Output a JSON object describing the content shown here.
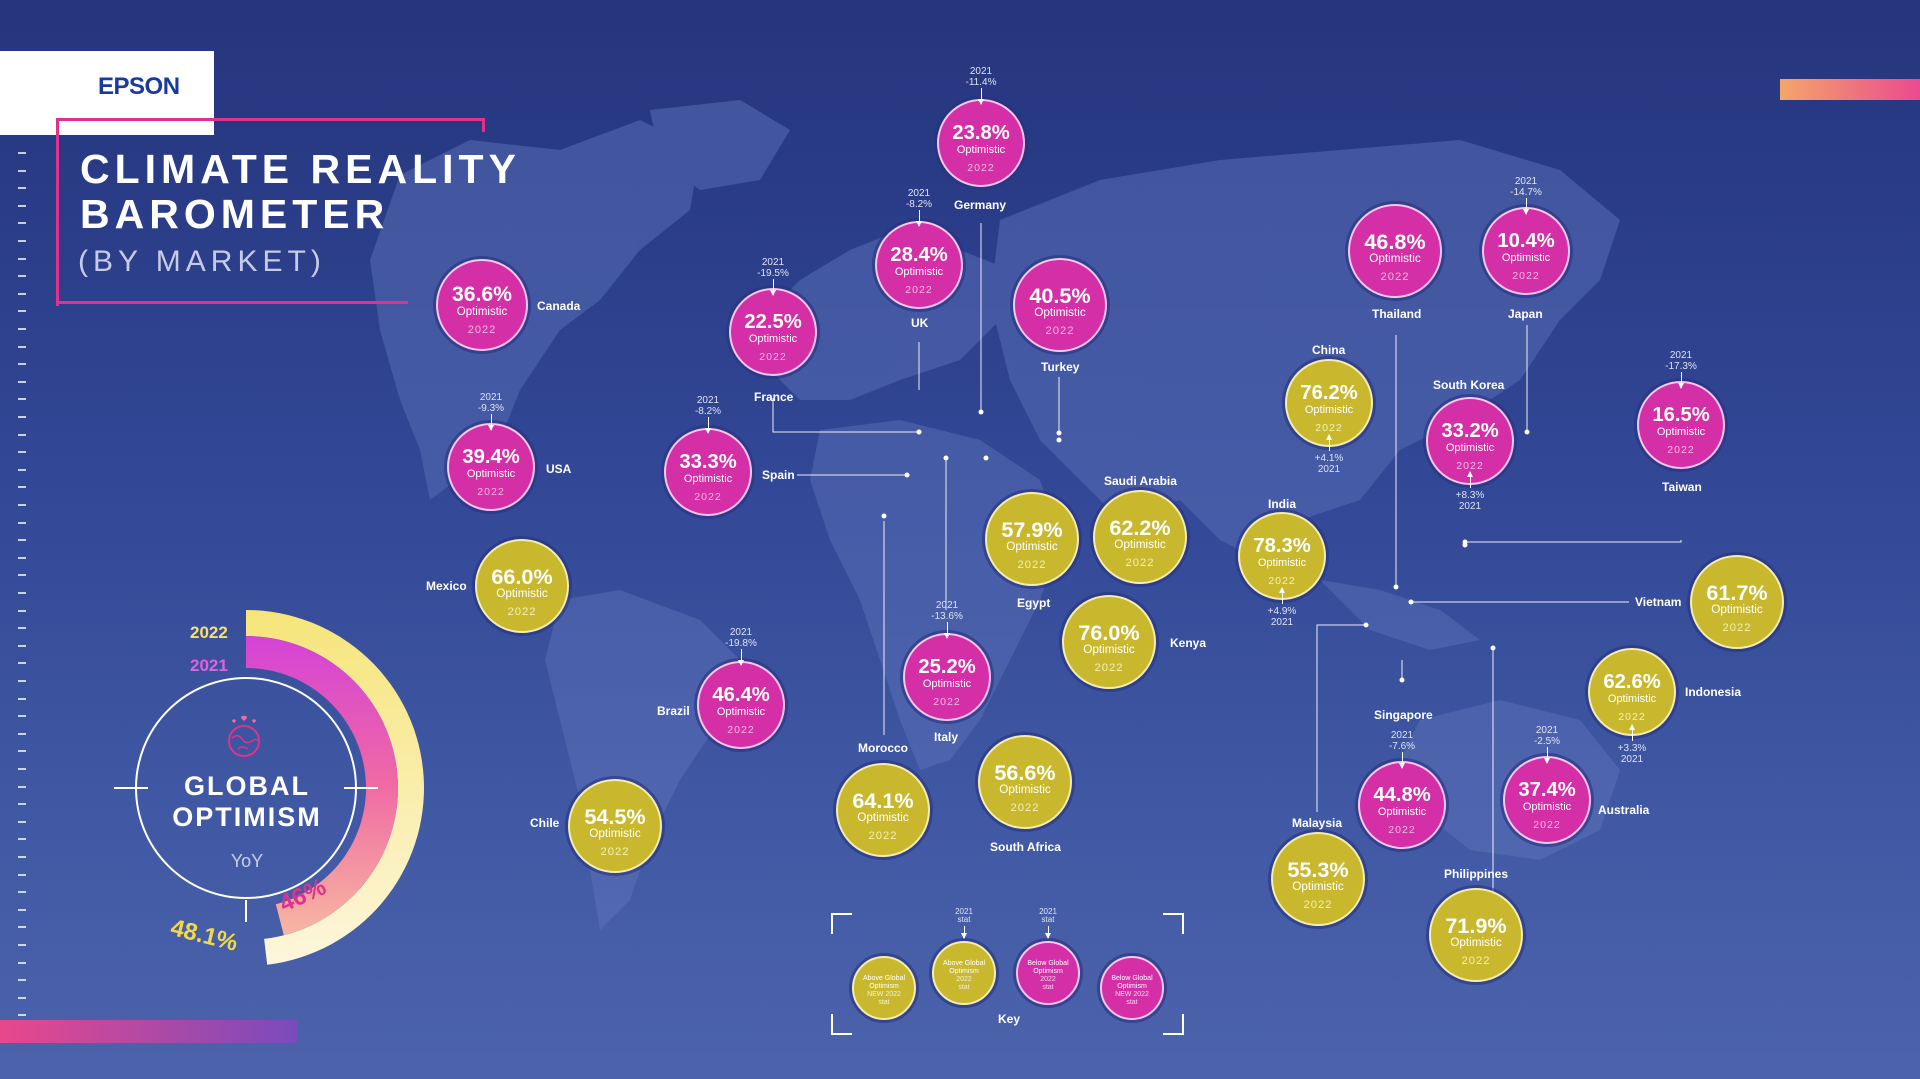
{
  "brand": "EPSON",
  "title": {
    "line1": "CLIMATE REALITY",
    "line2": "BAROMETER",
    "line3": "(BY MARKET)"
  },
  "colors": {
    "above": "#c9b82e",
    "below": "#d42fa6",
    "background": "#2e4494",
    "accent": "#e0318c"
  },
  "optimistic_label": "Optimistic",
  "global": {
    "title1": "GLOBAL",
    "title2": "OPTIMISM",
    "sub": "YoY",
    "legend_2022": "2022",
    "legend_2021": "2021",
    "value_2022": "48.1%",
    "value_2021": "46%",
    "value_2022_num": 48.1,
    "value_2021_num": 46,
    "icon": "earth-heart-icon"
  },
  "markets": [
    {
      "name": "Canada",
      "pct": "36.6%",
      "year": "2022",
      "color": "pink",
      "change_year": "",
      "change": ""
    },
    {
      "name": "USA",
      "pct": "39.4%",
      "year": "2022",
      "color": "pink",
      "change_year": "2021",
      "change": "-9.3%"
    },
    {
      "name": "Mexico",
      "pct": "66.0%",
      "year": "2022",
      "color": "yellow",
      "change_year": "",
      "change": ""
    },
    {
      "name": "Chile",
      "pct": "54.5%",
      "year": "2022",
      "color": "yellow",
      "change_year": "",
      "change": ""
    },
    {
      "name": "Brazil",
      "pct": "46.4%",
      "year": "2022",
      "color": "pink",
      "change_year": "2021",
      "change": "-19.8%"
    },
    {
      "name": "Spain",
      "pct": "33.3%",
      "year": "2022",
      "color": "pink",
      "change_year": "2021",
      "change": "-8.2%"
    },
    {
      "name": "France",
      "pct": "22.5%",
      "year": "2022",
      "color": "pink",
      "change_year": "2021",
      "change": "-19.5%"
    },
    {
      "name": "UK",
      "pct": "28.4%",
      "year": "2022",
      "color": "pink",
      "change_year": "2021",
      "change": "-8.2%"
    },
    {
      "name": "Germany",
      "pct": "23.8%",
      "year": "2022",
      "color": "pink",
      "change_year": "2021",
      "change": "-11.4%"
    },
    {
      "name": "Turkey",
      "pct": "40.5%",
      "year": "2022",
      "color": "pink",
      "change_year": "",
      "change": ""
    },
    {
      "name": "Italy",
      "pct": "25.2%",
      "year": "2022",
      "color": "pink",
      "change_year": "2021",
      "change": "-13.6%"
    },
    {
      "name": "Morocco",
      "pct": "64.1%",
      "year": "2022",
      "color": "yellow",
      "change_year": "",
      "change": ""
    },
    {
      "name": "Egypt",
      "pct": "57.9%",
      "year": "2022",
      "color": "yellow",
      "change_year": "",
      "change": ""
    },
    {
      "name": "Saudi Arabia",
      "pct": "62.2%",
      "year": "2022",
      "color": "yellow",
      "change_year": "",
      "change": ""
    },
    {
      "name": "Kenya",
      "pct": "76.0%",
      "year": "2022",
      "color": "yellow",
      "change_year": "",
      "change": ""
    },
    {
      "name": "South Africa",
      "pct": "56.6%",
      "year": "2022",
      "color": "yellow",
      "change_year": "",
      "change": ""
    },
    {
      "name": "China",
      "pct": "76.2%",
      "year": "2022",
      "color": "yellow",
      "change_year": "2021",
      "change": "+4.1%"
    },
    {
      "name": "India",
      "pct": "78.3%",
      "year": "2022",
      "color": "yellow",
      "change_year": "2021",
      "change": "+4.9%"
    },
    {
      "name": "Thailand",
      "pct": "46.8%",
      "year": "2022",
      "color": "pink",
      "change_year": "",
      "change": ""
    },
    {
      "name": "Japan",
      "pct": "10.4%",
      "year": "2022",
      "color": "pink",
      "change_year": "2021",
      "change": "-14.7%"
    },
    {
      "name": "South Korea",
      "pct": "33.2%",
      "year": "2022",
      "color": "pink",
      "change_year": "2021",
      "change": "+8.3%"
    },
    {
      "name": "Taiwan",
      "pct": "16.5%",
      "year": "2022",
      "color": "pink",
      "change_year": "2021",
      "change": "-17.3%"
    },
    {
      "name": "Vietnam",
      "pct": "61.7%",
      "year": "2022",
      "color": "yellow",
      "change_year": "",
      "change": ""
    },
    {
      "name": "Indonesia",
      "pct": "62.6%",
      "year": "2022",
      "color": "yellow",
      "change_year": "2021",
      "change": "+3.3%"
    },
    {
      "name": "Singapore",
      "pct": "44.8%",
      "year": "2022",
      "color": "pink",
      "change_year": "2021",
      "change": "-7.6%"
    },
    {
      "name": "Australia",
      "pct": "37.4%",
      "year": "2022",
      "color": "pink",
      "change_year": "2021",
      "change": "-2.5%"
    },
    {
      "name": "Malaysia",
      "pct": "55.3%",
      "year": "2022",
      "color": "yellow",
      "change_year": "",
      "change": ""
    },
    {
      "name": "Philippines",
      "pct": "71.9%",
      "year": "2022",
      "color": "yellow",
      "change_year": "",
      "change": ""
    }
  ],
  "key": {
    "title": "Key",
    "items": [
      {
        "line1": "Above Global",
        "line2": "Optimism",
        "line3": "NEW 2022",
        "line4": "stat",
        "top1": "",
        "top2": ""
      },
      {
        "line1": "Above Global",
        "line2": "Optimism",
        "line3": "2022",
        "line4": "stat",
        "top1": "2021",
        "top2": "stat"
      },
      {
        "line1": "Below Global",
        "line2": "Optimism",
        "line3": "2022",
        "line4": "stat",
        "top1": "2021",
        "top2": "stat"
      },
      {
        "line1": "Below Global",
        "line2": "Optimism",
        "line3": "NEW 2022",
        "line4": "stat",
        "top1": "",
        "top2": ""
      }
    ]
  }
}
